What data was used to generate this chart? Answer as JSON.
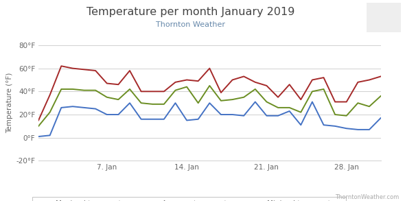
{
  "title": "Temperature per month January 2019",
  "subtitle": "Thornton Weather",
  "ylabel": "Temperature (°F)",
  "watermark": "ThorntonWeather.com",
  "ylim": [
    -20,
    80
  ],
  "yticks": [
    -20,
    0,
    20,
    40,
    60,
    80
  ],
  "ytick_labels": [
    "-20°F",
    "0°F",
    "20°F",
    "40°F",
    "60°F",
    "80°F"
  ],
  "xtick_positions": [
    7,
    14,
    21,
    28
  ],
  "xtick_labels": [
    "7. Jan",
    "14. Jan",
    "21. Jan",
    "28. Jan"
  ],
  "days": [
    1,
    2,
    3,
    4,
    5,
    6,
    7,
    8,
    9,
    10,
    11,
    12,
    13,
    14,
    15,
    16,
    17,
    18,
    19,
    20,
    21,
    22,
    23,
    24,
    25,
    26,
    27,
    28,
    29,
    30,
    31
  ],
  "maximal": [
    15,
    37,
    62,
    60,
    59,
    58,
    47,
    46,
    58,
    40,
    40,
    40,
    48,
    50,
    49,
    60,
    39,
    50,
    53,
    48,
    45,
    35,
    46,
    33,
    50,
    52,
    31,
    31,
    48,
    50,
    53
  ],
  "average": [
    10,
    22,
    42,
    42,
    41,
    41,
    35,
    33,
    42,
    30,
    29,
    29,
    41,
    44,
    30,
    45,
    32,
    33,
    35,
    42,
    31,
    26,
    26,
    22,
    40,
    42,
    20,
    19,
    30,
    27,
    36
  ],
  "minimal": [
    1,
    2,
    26,
    27,
    26,
    25,
    20,
    20,
    30,
    16,
    16,
    16,
    30,
    15,
    16,
    30,
    20,
    20,
    19,
    31,
    19,
    19,
    23,
    11,
    31,
    11,
    10,
    8,
    7,
    7,
    17
  ],
  "max_color": "#a52a2a",
  "avg_color": "#6b8e23",
  "min_color": "#4472c4",
  "bg_color": "#ffffff",
  "grid_color": "#d0d0d0",
  "title_color": "#444444",
  "subtitle_color": "#6688aa",
  "tick_color": "#666666",
  "title_fontsize": 11.5,
  "subtitle_fontsize": 8,
  "axis_fontsize": 7.5,
  "ylabel_fontsize": 7.5,
  "legend_fontsize": 7.5,
  "watermark_fontsize": 6,
  "logo_color": "#eeeeee"
}
